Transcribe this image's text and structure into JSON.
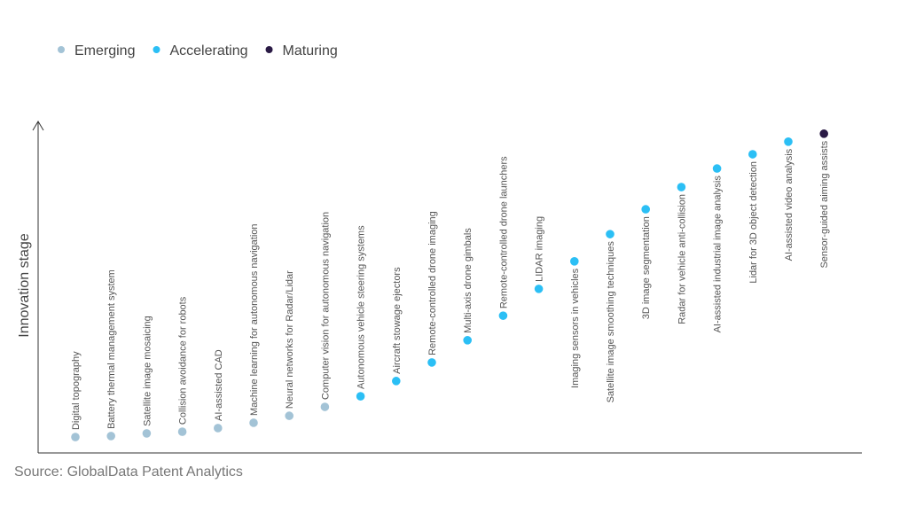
{
  "chart_data": {
    "type": "scatter",
    "y_label": "Innovation stage",
    "source": "Source: GlobalData Patent Analytics",
    "ylim": [
      0,
      100
    ],
    "categories": [
      "Digital topography",
      "Battery thermal management system",
      "Satellite image mosaicing",
      "Collision avoidance for robots",
      "AI-assisted CAD",
      "Machine learning for autonomous navigation",
      "Neural networks for Radar/Lidar",
      "Computer vision for autonomous navigation",
      "Autonomous vehicle steering systems",
      "Aircraft stowage ejectors",
      "Remote-controlled drone imaging",
      "Multi-axis drone gimbals",
      "Remote-controlled drone launchers",
      "LIDAR imaging",
      "Imaging sensors in vehicles",
      "Satellite image smoothing techniques",
      "3D image segmentation",
      "Radar for vehicle anti-collision",
      "AI-assisted industrial image analysis",
      "Lidar for 3D object detection",
      "AI-assisted video analysis",
      "Sensor-guided aiming assists"
    ],
    "series": [
      {
        "name": "Emerging",
        "color": "#a3c3d6",
        "values": [
          4.8,
          5.1,
          5.9,
          6.4,
          7.5,
          9.1,
          11.2,
          13.9,
          null,
          null,
          null,
          null,
          null,
          null,
          null,
          null,
          null,
          null,
          null,
          null,
          null,
          null
        ]
      },
      {
        "name": "Accelerating",
        "color": "#2bbff5",
        "values": [
          null,
          null,
          null,
          null,
          null,
          null,
          null,
          null,
          17.1,
          21.7,
          27.3,
          34.0,
          41.4,
          49.5,
          57.8,
          66.0,
          73.5,
          80.2,
          85.8,
          90.1,
          93.9,
          null
        ]
      },
      {
        "name": "Maturing",
        "color": "#2a1a45",
        "values": [
          null,
          null,
          null,
          null,
          null,
          null,
          null,
          null,
          null,
          null,
          null,
          null,
          null,
          null,
          null,
          null,
          null,
          null,
          null,
          null,
          null,
          96.3
        ]
      }
    ]
  }
}
